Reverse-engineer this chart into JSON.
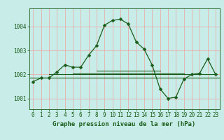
{
  "title": "Graphe pression niveau de la mer (hPa)",
  "background_color": "#c8ede8",
  "line_color": "#1a5c1a",
  "grid_color_v": "#f0a0a0",
  "grid_color_h": "#f0a0a0",
  "xlim": [
    -0.5,
    23.5
  ],
  "ylim": [
    1000.55,
    1004.75
  ],
  "yticks": [
    1001,
    1002,
    1003,
    1004
  ],
  "xticks": [
    0,
    1,
    2,
    3,
    4,
    5,
    6,
    7,
    8,
    9,
    10,
    11,
    12,
    13,
    14,
    15,
    16,
    17,
    18,
    19,
    20,
    21,
    22,
    23
  ],
  "main_series": [
    1001.7,
    1001.85,
    1001.85,
    1002.1,
    1002.4,
    1002.3,
    1002.3,
    1002.8,
    1003.2,
    1004.05,
    1004.25,
    1004.3,
    1004.1,
    1003.35,
    1003.05,
    1002.4,
    1001.4,
    1001.0,
    1001.05,
    1001.8,
    1002.0,
    1002.05,
    1002.65,
    1002.0
  ],
  "flat_line_full_y": 1001.85,
  "flat_line2_x": [
    2,
    23
  ],
  "flat_line2_y": [
    1002.0,
    1002.0
  ],
  "flat_line3_x": [
    5,
    19
  ],
  "flat_line3_y": [
    1002.05,
    1002.05
  ],
  "flat_line4_x": [
    8,
    16
  ],
  "flat_line4_y": [
    1002.15,
    1002.15
  ],
  "tick_fontsize": 5.5,
  "xlabel_fontsize": 6.5,
  "marker_size": 2.5,
  "linewidth": 0.9
}
